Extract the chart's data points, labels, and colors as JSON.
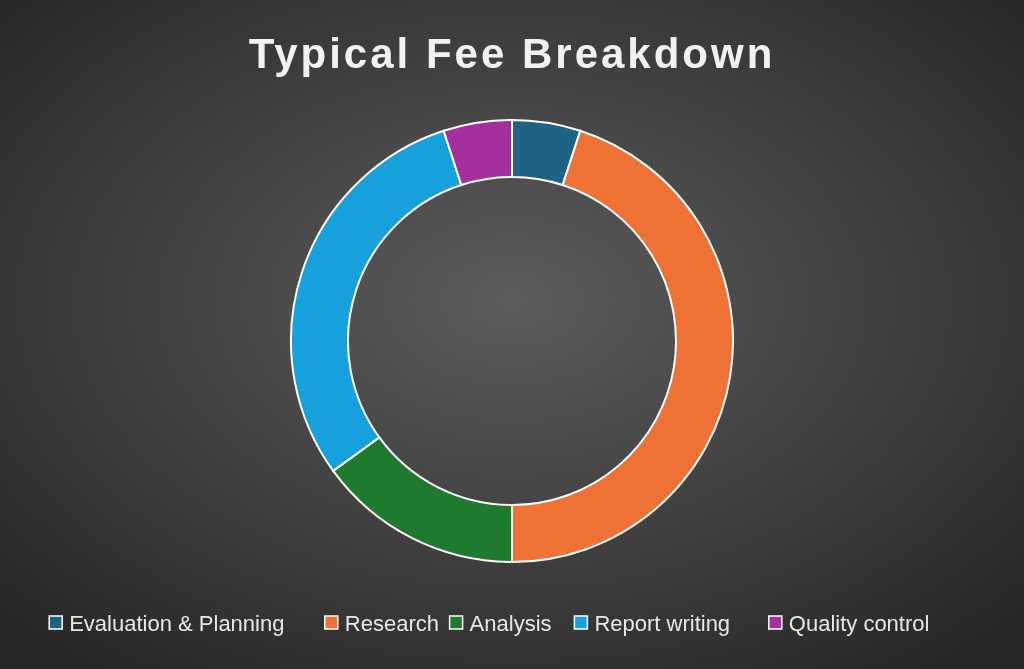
{
  "chart_data": {
    "type": "donut",
    "title": "Typical Fee Breakdown",
    "categories": [
      "Evaluation & Planning",
      "Research",
      "Analysis",
      "Report writing",
      "Quality control"
    ],
    "values": [
      5,
      45,
      15,
      30,
      5
    ],
    "colors": [
      "#1f6384",
      "#ee7236",
      "#1e7a2c",
      "#16a0dc",
      "#a3309c"
    ],
    "legend": "bottom"
  }
}
